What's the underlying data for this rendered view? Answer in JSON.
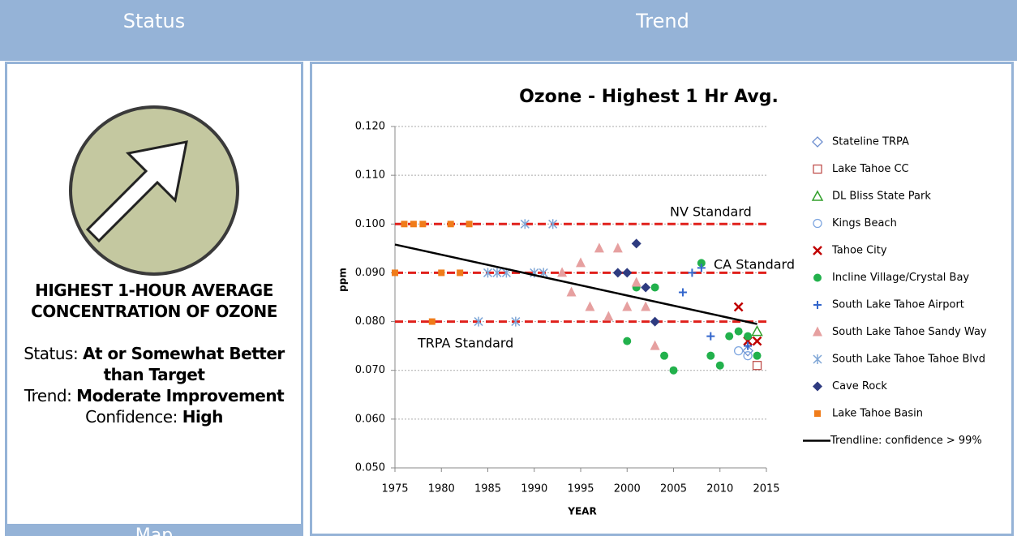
{
  "header": {
    "status": "Status",
    "trend": "Trend",
    "map": "Map"
  },
  "status_panel": {
    "title": "HIGHEST 1-HOUR AVERAGE CONCENTRATION OF OZONE",
    "items": [
      {
        "label": "Status:",
        "value": "At or Somewhat Better than Target"
      },
      {
        "label": "Trend:",
        "value": "Moderate Improvement"
      },
      {
        "label": "Confidence:",
        "value": "High"
      }
    ]
  },
  "chart_data": {
    "type": "scatter",
    "title": "Ozone - Highest 1 Hr Avg.",
    "x_label": "YEAR",
    "y_label": "ppm",
    "xlim": [
      1975,
      2015
    ],
    "xticks": [
      1975,
      1980,
      1985,
      1990,
      1995,
      2000,
      2005,
      2010,
      2015
    ],
    "ylim": [
      0.05,
      0.12
    ],
    "yticks": [
      {
        "value": 0.05,
        "label": "0.050"
      },
      {
        "value": 0.06,
        "label": "0.060"
      },
      {
        "value": 0.07,
        "label": "0.070"
      },
      {
        "value": 0.08,
        "label": "0.080"
      },
      {
        "value": 0.09,
        "label": "0.090"
      },
      {
        "value": 0.1,
        "label": "0.100"
      },
      {
        "value": 0.11,
        "label": "0.110"
      },
      {
        "value": 0.12,
        "label": "0.120"
      }
    ],
    "grid": true,
    "reference_lines": [
      {
        "label": "NV Standard",
        "value": 0.1,
        "color": "#e0201b"
      },
      {
        "label": "CA Standard",
        "value": 0.09,
        "color": "#e0201b"
      },
      {
        "label": "TRPA Standard",
        "value": 0.08,
        "color": "#e0201b"
      }
    ],
    "series": [
      {
        "name": "Stateline TRPA",
        "color": "#6d8fcf",
        "marker": "diamond-open",
        "x": [
          2013
        ],
        "values": [
          0.074
        ]
      },
      {
        "name": "Lake Tahoe CC",
        "color": "#c0504d",
        "marker": "square-open",
        "x": [
          2014
        ],
        "values": [
          0.071
        ]
      },
      {
        "name": "DL Bliss State Park",
        "color": "#33a02c",
        "marker": "triangle-open",
        "x": [
          2014
        ],
        "values": [
          0.078
        ]
      },
      {
        "name": "Kings Beach",
        "color": "#7ea6e0",
        "marker": "circle-open",
        "x": [
          2012,
          2013
        ],
        "values": [
          0.074,
          0.073
        ]
      },
      {
        "name": "Tahoe City",
        "color": "#c00000",
        "marker": "x",
        "x": [
          2012,
          2013,
          2014
        ],
        "values": [
          0.083,
          0.076,
          0.076
        ]
      },
      {
        "name": "Incline Village/Crystal Bay",
        "color": "#22b14c",
        "marker": "circle",
        "x": [
          2000,
          2001,
          2003,
          2004,
          2005,
          2008,
          2009,
          2010,
          2011,
          2012,
          2013,
          2014
        ],
        "values": [
          0.076,
          0.087,
          0.087,
          0.073,
          0.07,
          0.092,
          0.073,
          0.071,
          0.077,
          0.078,
          0.077,
          0.073
        ]
      },
      {
        "name": "South Lake Tahoe Airport",
        "color": "#3366cc",
        "marker": "plus",
        "x": [
          2006,
          2007,
          2008,
          2009,
          2013
        ],
        "values": [
          0.086,
          0.09,
          0.091,
          0.077,
          0.075
        ]
      },
      {
        "name": "South Lake Tahoe Sandy Way",
        "color": "#e6a0a0",
        "marker": "triangle",
        "x": [
          1993,
          1994,
          1995,
          1996,
          1997,
          1998,
          1999,
          2000,
          2001,
          2002,
          2003
        ],
        "values": [
          0.09,
          0.086,
          0.092,
          0.083,
          0.095,
          0.081,
          0.095,
          0.083,
          0.088,
          0.083,
          0.075
        ]
      },
      {
        "name": "South Lake Tahoe Tahoe Blvd",
        "color": "#7fa6d6",
        "marker": "asterisk",
        "x": [
          1989,
          1992,
          1985,
          1986,
          1987,
          1990,
          1991,
          1984,
          1988
        ],
        "values": [
          0.1,
          0.1,
          0.09,
          0.09,
          0.09,
          0.09,
          0.09,
          0.08,
          0.08
        ]
      },
      {
        "name": "Cave Rock",
        "color": "#2e3b80",
        "marker": "diamond",
        "x": [
          1999,
          2000,
          2001,
          2002,
          2003
        ],
        "values": [
          0.09,
          0.09,
          0.096,
          0.087,
          0.08
        ]
      },
      {
        "name": "Lake Tahoe Basin",
        "color": "#f07c1a",
        "marker": "square",
        "x": [
          1976,
          1977,
          1978,
          1981,
          1983,
          1975,
          1980,
          1982,
          1979
        ],
        "values": [
          0.1,
          0.1,
          0.1,
          0.1,
          0.1,
          0.09,
          0.09,
          0.09,
          0.08
        ]
      }
    ],
    "trendline": {
      "name": "Trendline: confidence > 99%",
      "color": "#000000",
      "x": [
        1975,
        2014
      ],
      "values": [
        0.0958,
        0.0795
      ]
    }
  }
}
